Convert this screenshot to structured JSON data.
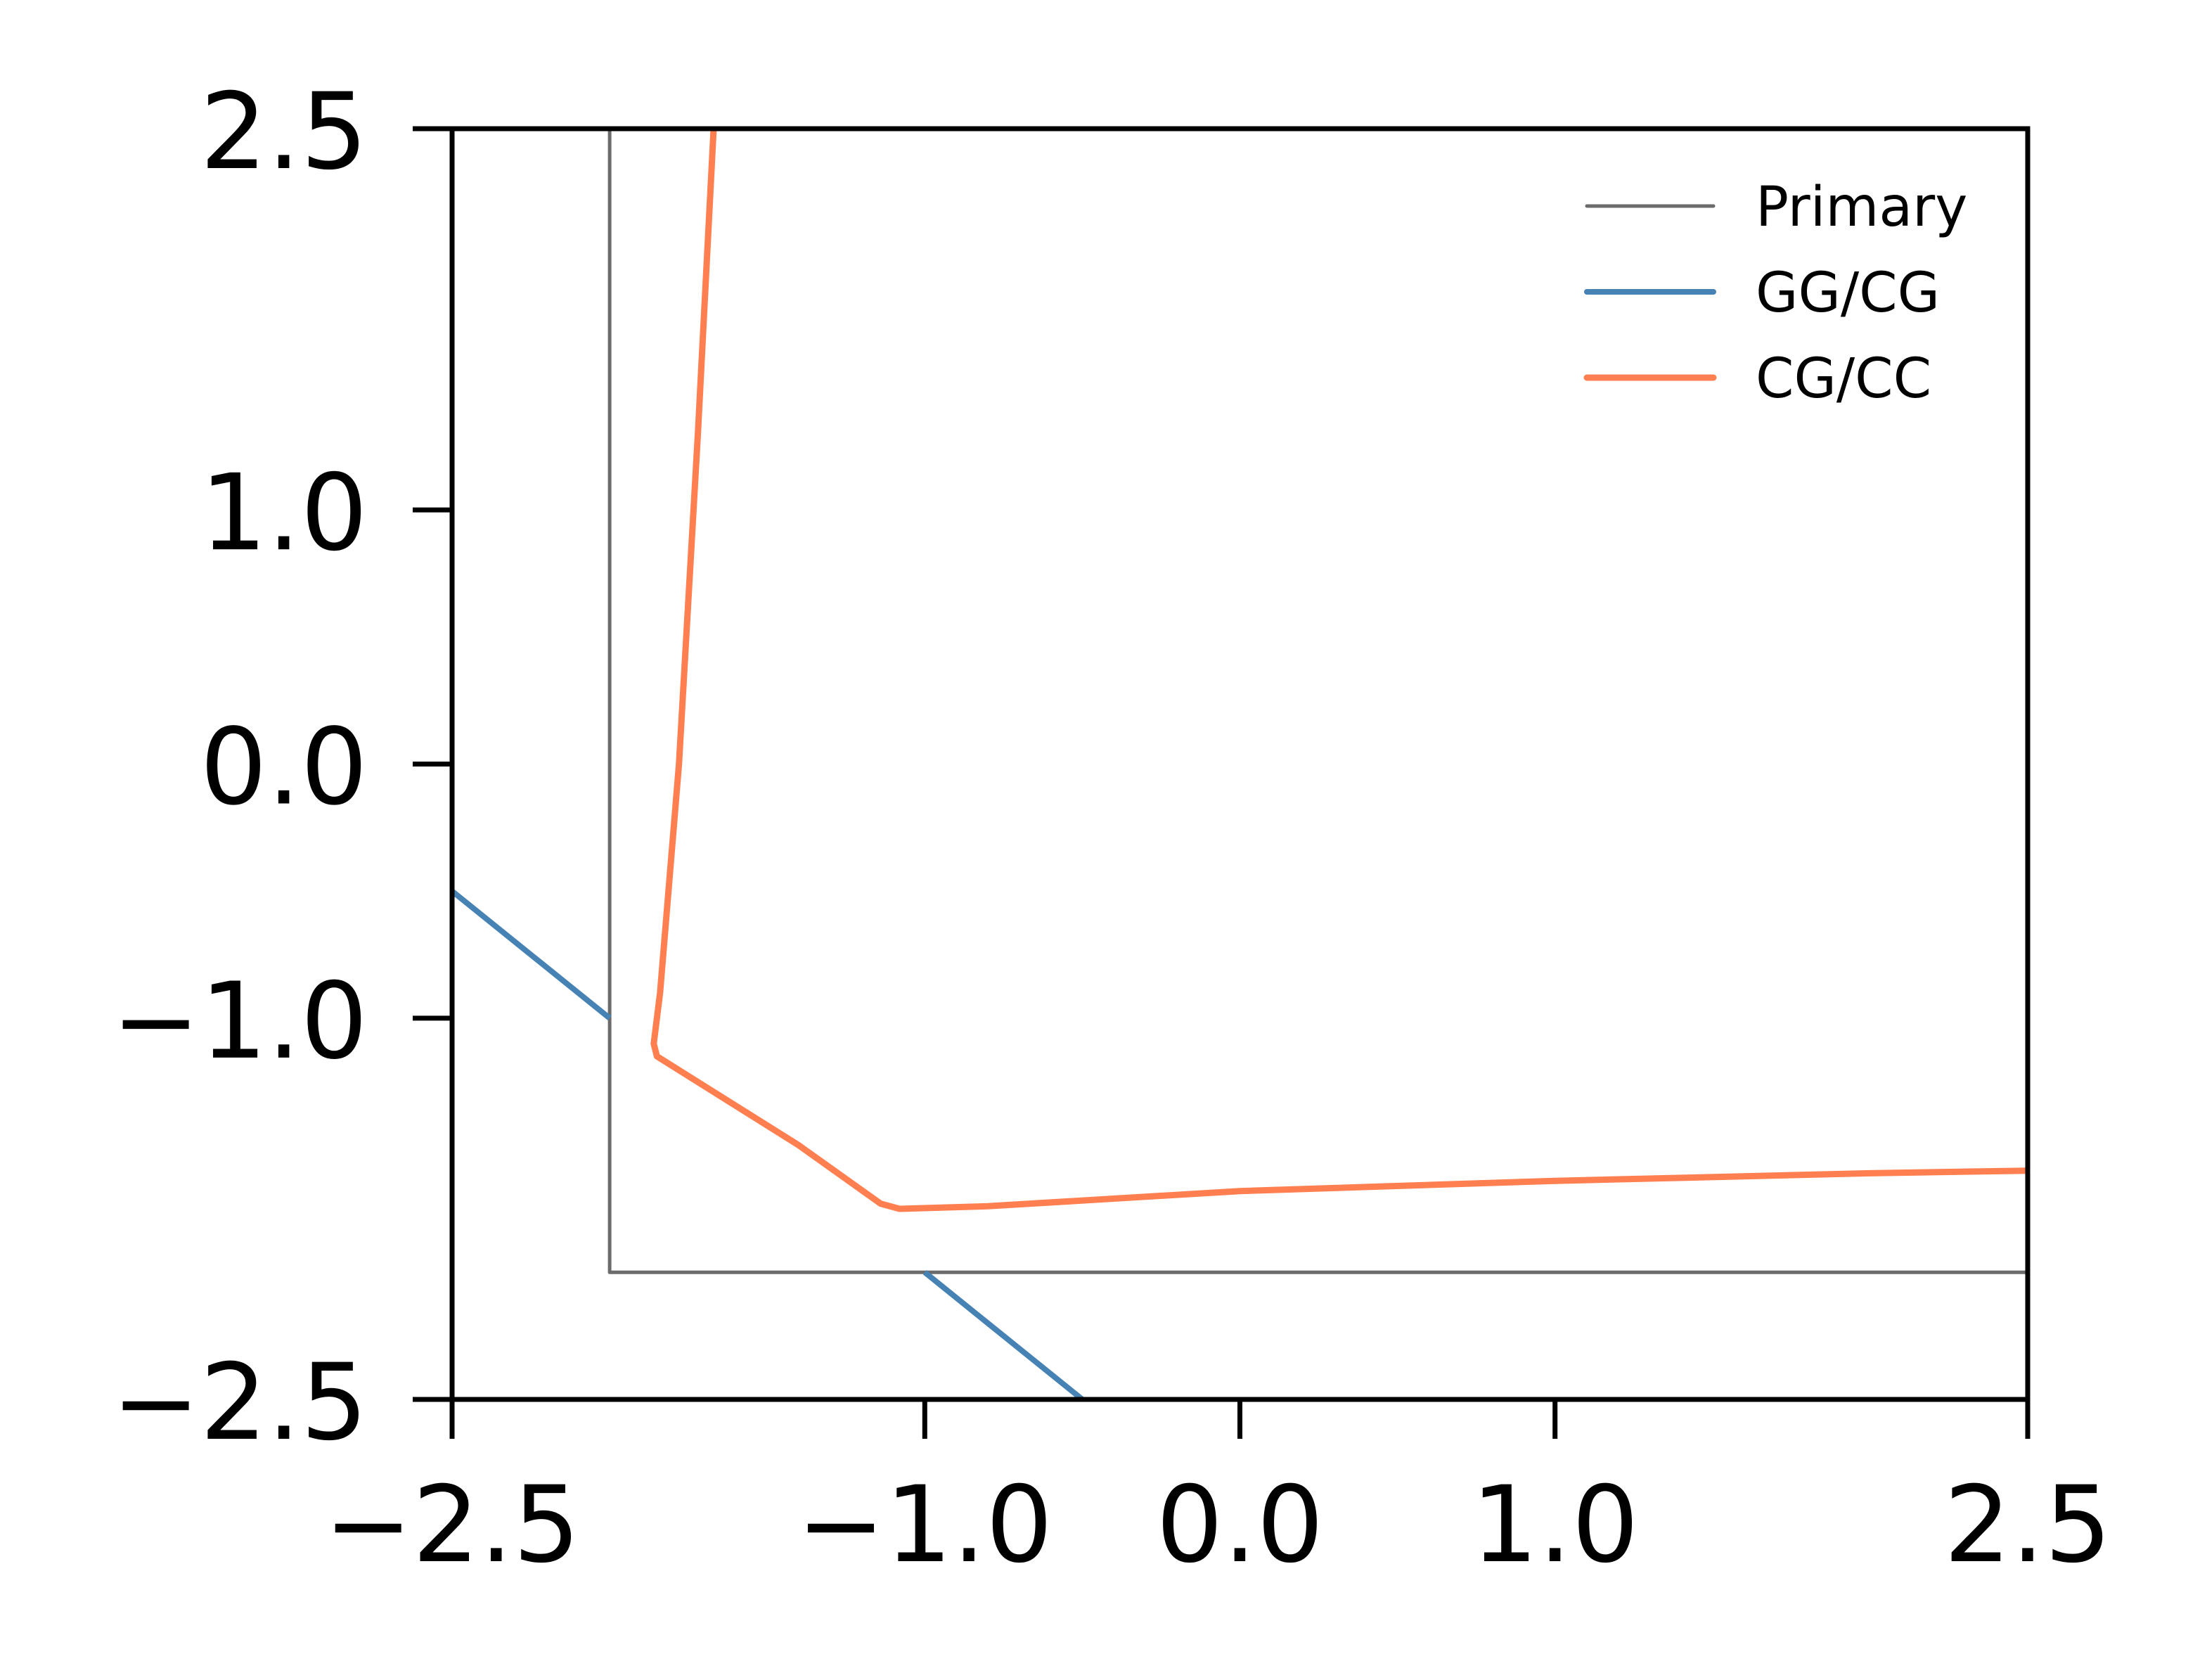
{
  "chart_data": {
    "type": "line",
    "title": "",
    "xlabel": "",
    "ylabel": "",
    "xlim": [
      -2.5,
      2.5
    ],
    "ylim": [
      -2.5,
      2.5
    ],
    "xticks": [
      -2.5,
      -1.0,
      0.0,
      1.0,
      2.5
    ],
    "yticks": [
      -2.5,
      -1.0,
      0.0,
      1.0,
      2.5
    ],
    "xtick_labels": [
      "−2.5",
      "−1.0",
      "0.0",
      "1.0",
      "2.5"
    ],
    "ytick_labels": [
      "−2.5",
      "−1.0",
      "0.0",
      "1.0",
      "2.5"
    ],
    "grid": false,
    "legend_position": "top-right",
    "series": [
      {
        "name": "Primary",
        "color": "#6b6b6b",
        "x": [
          -2.0,
          -2.0,
          2.5
        ],
        "y": [
          2.5,
          -2.0,
          -2.0
        ]
      },
      {
        "name": "GG/CG",
        "color": "#4682b4",
        "segments": [
          {
            "x": [
              -2.5,
              -2.0
            ],
            "y": [
              -0.5,
              -1.0
            ]
          },
          {
            "x": [
              -1.0,
              -0.5
            ],
            "y": [
              -2.0,
              -2.5
            ]
          }
        ]
      },
      {
        "name": "CG/CC",
        "color": "#ff7f50",
        "x": [
          -1.67,
          -1.72,
          -1.78,
          -1.84,
          -1.86,
          -1.85,
          -1.4,
          -1.14,
          -1.08,
          -0.8,
          0.0,
          1.0,
          2.0,
          2.5
        ],
        "y": [
          2.5,
          1.3,
          0.0,
          -0.9,
          -1.1,
          -1.15,
          -1.5,
          -1.73,
          -1.75,
          -1.74,
          -1.68,
          -1.64,
          -1.61,
          -1.6
        ]
      }
    ]
  }
}
